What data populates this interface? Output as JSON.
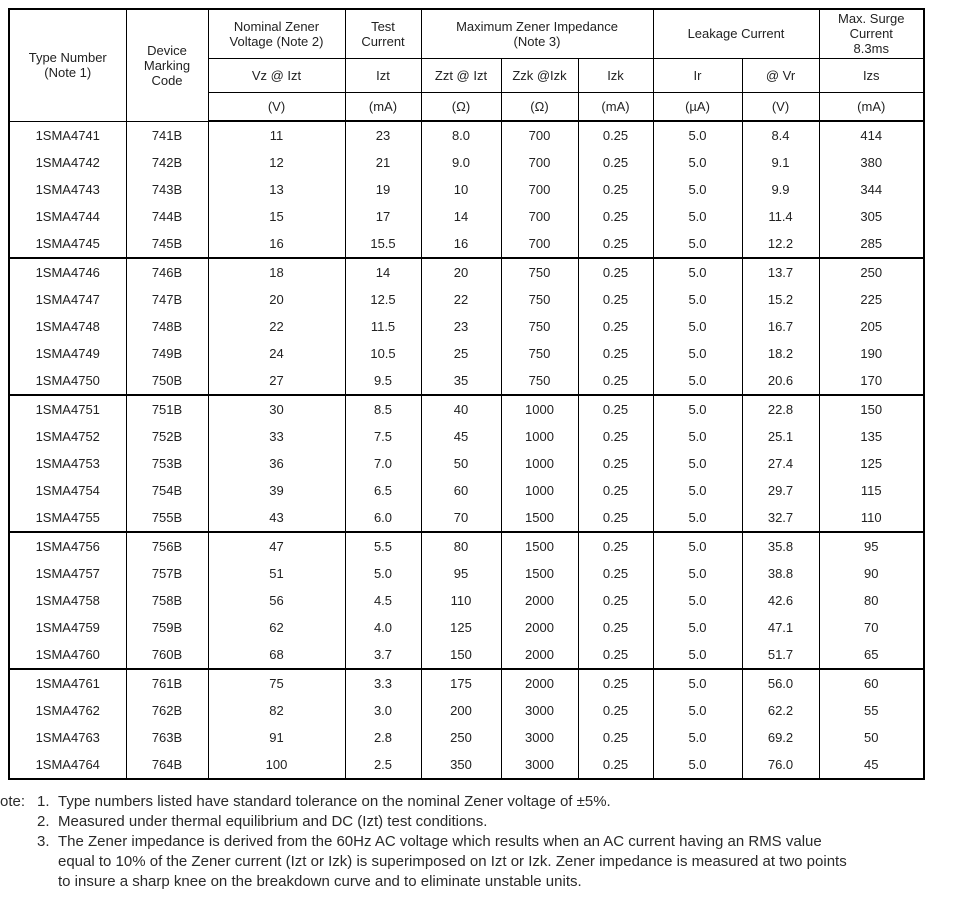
{
  "colors": {
    "background": "#ffffff",
    "text": "#222222",
    "border": "#000000"
  },
  "table": {
    "group_size": 5,
    "groups": {
      "type_number": "Type Number\n(Note 1)",
      "device_marking": "Device\nMarking\nCode",
      "nominal_zener": "Nominal Zener\nVoltage (Note 2)",
      "test_current": "Test\nCurrent",
      "max_impedance": "Maximum Zener Impedance\n(Note 3)",
      "leakage": "Leakage Current",
      "max_surge": "Max. Surge\nCurrent\n8.3ms"
    },
    "symbols": {
      "vz": "Vz @ Izt",
      "izt": "Izt",
      "zzt": "Zzt @ Izt",
      "zzk": "Zzk @Izk",
      "izk": "Izk",
      "ir": "Ir",
      "vr": "@ Vr",
      "izs": "Izs"
    },
    "units": {
      "vz": "(V)",
      "izt": "(mA)",
      "zzt": "(Ω)",
      "zzk": "(Ω)",
      "izk": "(mA)",
      "ir": "(µA)",
      "vr": "(V)",
      "izs": "(mA)"
    },
    "rows": [
      [
        "1SMA4741",
        "741B",
        "11",
        "23",
        "8.0",
        "700",
        "0.25",
        "5.0",
        "8.4",
        "414"
      ],
      [
        "1SMA4742",
        "742B",
        "12",
        "21",
        "9.0",
        "700",
        "0.25",
        "5.0",
        "9.1",
        "380"
      ],
      [
        "1SMA4743",
        "743B",
        "13",
        "19",
        "10",
        "700",
        "0.25",
        "5.0",
        "9.9",
        "344"
      ],
      [
        "1SMA4744",
        "744B",
        "15",
        "17",
        "14",
        "700",
        "0.25",
        "5.0",
        "11.4",
        "305"
      ],
      [
        "1SMA4745",
        "745B",
        "16",
        "15.5",
        "16",
        "700",
        "0.25",
        "5.0",
        "12.2",
        "285"
      ],
      [
        "1SMA4746",
        "746B",
        "18",
        "14",
        "20",
        "750",
        "0.25",
        "5.0",
        "13.7",
        "250"
      ],
      [
        "1SMA4747",
        "747B",
        "20",
        "12.5",
        "22",
        "750",
        "0.25",
        "5.0",
        "15.2",
        "225"
      ],
      [
        "1SMA4748",
        "748B",
        "22",
        "11.5",
        "23",
        "750",
        "0.25",
        "5.0",
        "16.7",
        "205"
      ],
      [
        "1SMA4749",
        "749B",
        "24",
        "10.5",
        "25",
        "750",
        "0.25",
        "5.0",
        "18.2",
        "190"
      ],
      [
        "1SMA4750",
        "750B",
        "27",
        "9.5",
        "35",
        "750",
        "0.25",
        "5.0",
        "20.6",
        "170"
      ],
      [
        "1SMA4751",
        "751B",
        "30",
        "8.5",
        "40",
        "1000",
        "0.25",
        "5.0",
        "22.8",
        "150"
      ],
      [
        "1SMA4752",
        "752B",
        "33",
        "7.5",
        "45",
        "1000",
        "0.25",
        "5.0",
        "25.1",
        "135"
      ],
      [
        "1SMA4753",
        "753B",
        "36",
        "7.0",
        "50",
        "1000",
        "0.25",
        "5.0",
        "27.4",
        "125"
      ],
      [
        "1SMA4754",
        "754B",
        "39",
        "6.5",
        "60",
        "1000",
        "0.25",
        "5.0",
        "29.7",
        "115"
      ],
      [
        "1SMA4755",
        "755B",
        "43",
        "6.0",
        "70",
        "1500",
        "0.25",
        "5.0",
        "32.7",
        "110"
      ],
      [
        "1SMA4756",
        "756B",
        "47",
        "5.5",
        "80",
        "1500",
        "0.25",
        "5.0",
        "35.8",
        "95"
      ],
      [
        "1SMA4757",
        "757B",
        "51",
        "5.0",
        "95",
        "1500",
        "0.25",
        "5.0",
        "38.8",
        "90"
      ],
      [
        "1SMA4758",
        "758B",
        "56",
        "4.5",
        "110",
        "2000",
        "0.25",
        "5.0",
        "42.6",
        "80"
      ],
      [
        "1SMA4759",
        "759B",
        "62",
        "4.0",
        "125",
        "2000",
        "0.25",
        "5.0",
        "47.1",
        "70"
      ],
      [
        "1SMA4760",
        "760B",
        "68",
        "3.7",
        "150",
        "2000",
        "0.25",
        "5.0",
        "51.7",
        "65"
      ],
      [
        "1SMA4761",
        "761B",
        "75",
        "3.3",
        "175",
        "2000",
        "0.25",
        "5.0",
        "56.0",
        "60"
      ],
      [
        "1SMA4762",
        "762B",
        "82",
        "3.0",
        "200",
        "3000",
        "0.25",
        "5.0",
        "62.2",
        "55"
      ],
      [
        "1SMA4763",
        "763B",
        "91",
        "2.8",
        "250",
        "3000",
        "0.25",
        "5.0",
        "69.2",
        "50"
      ],
      [
        "1SMA4764",
        "764B",
        "100",
        "2.5",
        "350",
        "3000",
        "0.25",
        "5.0",
        "76.0",
        "45"
      ]
    ]
  },
  "notes": {
    "label": "ote:",
    "items": [
      {
        "num": "1.",
        "text": "Type numbers listed have standard tolerance on the nominal Zener voltage of ±5%."
      },
      {
        "num": "2.",
        "text": "Measured under thermal equilibrium and DC (Izt) test conditions."
      },
      {
        "num": "3.",
        "text": "The Zener impedance is derived from the 60Hz AC voltage which results when an AC current having an RMS value\nequal to 10% of the Zener current (Izt or Izk) is superimposed on Izt or Izk. Zener impedance is measured at two points\nto insure a sharp knee on the breakdown curve and to eliminate unstable units."
      }
    ]
  }
}
